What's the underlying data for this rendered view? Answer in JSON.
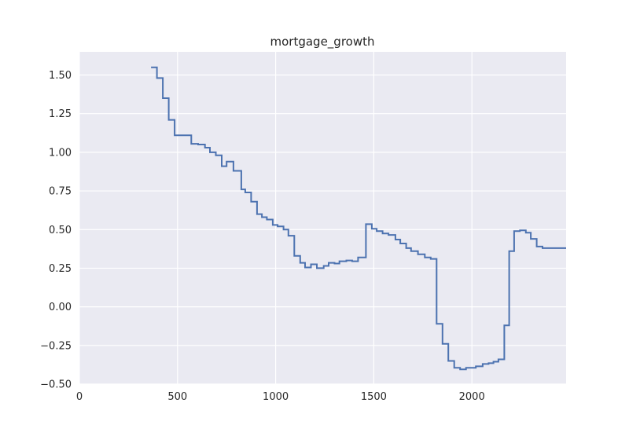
{
  "chart_data": {
    "type": "line",
    "title": "mortgage_growth",
    "xlabel": "",
    "ylabel": "",
    "xlim": [
      0,
      2480
    ],
    "ylim": [
      -0.5,
      1.65
    ],
    "xticks": [
      0,
      500,
      1000,
      1500,
      2000
    ],
    "yticks": [
      -0.5,
      -0.25,
      0.0,
      0.25,
      0.5,
      0.75,
      1.0,
      1.25,
      1.5
    ],
    "xtick_labels": [
      "0",
      "500",
      "1000",
      "1500",
      "2000"
    ],
    "ytick_labels": [
      "−0.50",
      "−0.25",
      "0.00",
      "0.25",
      "0.50",
      "0.75",
      "1.00",
      "1.25",
      "1.50"
    ],
    "grid": true,
    "step": "post",
    "colors": {
      "line": "#4c72b0",
      "background": "#eaeaf2",
      "grid": "#ffffff"
    },
    "series": [
      {
        "x": [
          365,
          395,
          425,
          455,
          485,
          520,
          570,
          605,
          640,
          665,
          695,
          725,
          750,
          785,
          825,
          845,
          875,
          905,
          930,
          955,
          985,
          1010,
          1040,
          1065,
          1095,
          1125,
          1150,
          1180,
          1210,
          1245,
          1270,
          1300,
          1325,
          1360,
          1390,
          1420,
          1460,
          1490,
          1515,
          1545,
          1575,
          1610,
          1635,
          1665,
          1690,
          1725,
          1760,
          1790,
          1820,
          1850,
          1880,
          1910,
          1940,
          1970,
          1995,
          2020,
          2055,
          2085,
          2110,
          2135,
          2165,
          2190,
          2215,
          2245,
          2275,
          2300,
          2330,
          2360,
          2390,
          2425,
          2455,
          2480
        ],
        "y": [
          1.55,
          1.48,
          1.35,
          1.21,
          1.11,
          1.11,
          1.055,
          1.05,
          1.03,
          1.0,
          0.98,
          0.91,
          0.94,
          0.88,
          0.76,
          0.74,
          0.68,
          0.6,
          0.58,
          0.565,
          0.53,
          0.52,
          0.5,
          0.46,
          0.33,
          0.285,
          0.255,
          0.275,
          0.25,
          0.265,
          0.285,
          0.28,
          0.295,
          0.3,
          0.295,
          0.32,
          0.535,
          0.505,
          0.49,
          0.475,
          0.465,
          0.435,
          0.41,
          0.38,
          0.36,
          0.34,
          0.32,
          0.31,
          -0.11,
          -0.24,
          -0.35,
          -0.395,
          -0.405,
          -0.395,
          -0.395,
          -0.385,
          -0.37,
          -0.365,
          -0.355,
          -0.34,
          -0.12,
          0.36,
          0.49,
          0.495,
          0.48,
          0.44,
          0.39,
          0.38,
          0.38,
          0.38,
          0.38,
          0.38
        ]
      }
    ]
  }
}
